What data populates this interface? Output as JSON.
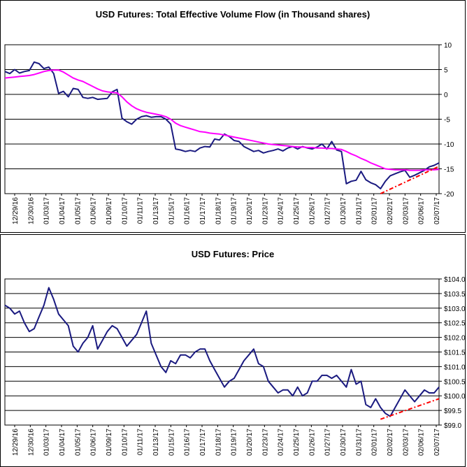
{
  "chart_data": [
    {
      "type": "line",
      "title": "USD Futures: Total Effective Volume Flow (in Thousand shares)",
      "xlabel": "",
      "ylabel": "",
      "x_tick_labels": [
        "12/29/16",
        "12/30/16",
        "01/03/17",
        "01/04/17",
        "01/05/17",
        "01/06/17",
        "01/09/17",
        "01/10/17",
        "01/11/17",
        "01/13/17",
        "01/15/17",
        "01/16/17",
        "01/17/17",
        "01/18/17",
        "01/19/17",
        "01/20/17",
        "01/23/17",
        "01/24/17",
        "01/25/17",
        "01/26/17",
        "01/27/17",
        "01/30/17",
        "01/31/17",
        "02/01/17",
        "02/02/17",
        "02/03/17",
        "02/06/17",
        "02/07/17"
      ],
      "y_tick_labels": [
        "10",
        "5",
        "0",
        "-5",
        "-10",
        "-15",
        "-20"
      ],
      "ylim": [
        -20,
        10
      ],
      "y_axis_side": "right",
      "grid": "horizontal",
      "series": [
        {
          "color": "#1a1a80",
          "values": [
            4.6,
            4.2,
            5.0,
            4.3,
            4.6,
            4.8,
            6.5,
            6.2,
            5.2,
            5.5,
            4.2,
            0.2,
            0.6,
            -0.5,
            1.2,
            1.0,
            -0.6,
            -0.8,
            -0.6,
            -1.0,
            -0.9,
            -0.8,
            0.5,
            1.0,
            -4.8,
            -5.5,
            -6.0,
            -5.0,
            -4.5,
            -4.3,
            -4.6,
            -4.5,
            -4.5,
            -5.0,
            -6.0,
            -11.0,
            -11.2,
            -11.5,
            -11.3,
            -11.5,
            -10.8,
            -10.5,
            -10.6,
            -9.0,
            -9.2,
            -8.0,
            -8.5,
            -9.3,
            -9.5,
            -10.5,
            -11.0,
            -11.5,
            -11.3,
            -11.8,
            -11.5,
            -11.3,
            -11.0,
            -11.4,
            -10.8,
            -10.5,
            -11.0,
            -10.5,
            -10.8,
            -11.0,
            -10.6,
            -10.0,
            -11.0,
            -9.5,
            -11.2,
            -11.5,
            -18.0,
            -17.5,
            -17.3,
            -15.5,
            -17.2,
            -17.8,
            -18.2,
            -19.0,
            -17.5,
            -16.4,
            -16.0,
            -15.6,
            -15.3,
            -16.7,
            -16.3,
            -15.8,
            -15.3,
            -14.6,
            -14.3,
            -13.8
          ]
        },
        {
          "color": "#ff00ff",
          "values": [
            3.3,
            3.4,
            3.5,
            3.6,
            3.7,
            3.8,
            4.0,
            4.3,
            4.6,
            4.8,
            4.9,
            4.9,
            4.5,
            3.9,
            3.3,
            2.9,
            2.6,
            2.1,
            1.6,
            1.1,
            0.7,
            0.5,
            0.4,
            0.3,
            -0.5,
            -1.5,
            -2.3,
            -2.9,
            -3.3,
            -3.6,
            -3.8,
            -4.0,
            -4.2,
            -4.5,
            -5.0,
            -5.8,
            -6.3,
            -6.6,
            -6.9,
            -7.2,
            -7.5,
            -7.6,
            -7.8,
            -7.9,
            -8.0,
            -8.2,
            -8.4,
            -8.6,
            -8.8,
            -9.0,
            -9.2,
            -9.4,
            -9.6,
            -9.8,
            -10.0,
            -10.1,
            -10.2,
            -10.3,
            -10.4,
            -10.5,
            -10.6,
            -10.6,
            -10.7,
            -10.7,
            -10.8,
            -10.8,
            -10.9,
            -10.9,
            -11.0,
            -11.1,
            -11.5,
            -12.0,
            -12.4,
            -12.9,
            -13.3,
            -13.8,
            -14.2,
            -14.6,
            -15.0,
            -15.1,
            -15.2,
            -15.2,
            -15.2,
            -15.3,
            -15.3,
            -15.3,
            -15.2,
            -15.2,
            -15.2,
            -15.1
          ]
        }
      ],
      "trendline": {
        "color": "#ff0000",
        "style": "dash-dot",
        "start": {
          "index": 77,
          "value": -20.0
        },
        "end": {
          "index": 89,
          "value": -14.5
        }
      }
    },
    {
      "type": "line",
      "title": "USD Futures: Price",
      "xlabel": "",
      "ylabel": "",
      "x_tick_labels": [
        "12/29/16",
        "12/30/16",
        "01/03/17",
        "01/04/17",
        "01/05/17",
        "01/06/17",
        "01/09/17",
        "01/10/17",
        "01/11/17",
        "01/13/17",
        "01/15/17",
        "01/16/17",
        "01/17/17",
        "01/18/17",
        "01/19/17",
        "01/20/17",
        "01/23/17",
        "01/24/17",
        "01/25/17",
        "01/26/17",
        "01/27/17",
        "01/30/17",
        "01/31/17",
        "02/01/17",
        "02/02/17",
        "02/03/17",
        "02/06/17",
        "02/07/17"
      ],
      "y_tick_labels": [
        "$104.0",
        "$103.5",
        "$103.0",
        "$102.5",
        "$102.0",
        "$101.5",
        "$101.0",
        "$100.5",
        "$100.0",
        "$99.5",
        "$99.0"
      ],
      "ylim": [
        99.0,
        104.0
      ],
      "y_axis_side": "right",
      "grid": "horizontal",
      "series": [
        {
          "color": "#1a1a80",
          "values": [
            103.1,
            103.0,
            102.8,
            102.9,
            102.5,
            102.2,
            102.3,
            102.7,
            103.1,
            103.7,
            103.3,
            102.8,
            102.6,
            102.4,
            101.7,
            101.5,
            101.8,
            102.0,
            102.4,
            101.6,
            101.9,
            102.2,
            102.4,
            102.3,
            102.0,
            101.7,
            101.9,
            102.1,
            102.5,
            102.9,
            101.8,
            101.4,
            101.0,
            100.8,
            101.2,
            101.1,
            101.4,
            101.4,
            101.3,
            101.5,
            101.6,
            101.6,
            101.2,
            100.9,
            100.6,
            100.3,
            100.5,
            100.6,
            100.9,
            101.2,
            101.4,
            101.6,
            101.1,
            101.0,
            100.5,
            100.3,
            100.1,
            100.2,
            100.2,
            100.0,
            100.3,
            100.0,
            100.1,
            100.5,
            100.5,
            100.7,
            100.7,
            100.6,
            100.7,
            100.5,
            100.3,
            100.9,
            100.4,
            100.5,
            99.7,
            99.6,
            99.9,
            99.6,
            99.4,
            99.3,
            99.6,
            99.9,
            100.2,
            100.0,
            99.8,
            100.0,
            100.2,
            100.1,
            100.1,
            100.3
          ]
        }
      ],
      "trendline": {
        "color": "#ff0000",
        "style": "dash-dot",
        "start": {
          "index": 77,
          "value": 99.2
        },
        "end": {
          "index": 89,
          "value": 99.9
        }
      }
    }
  ]
}
